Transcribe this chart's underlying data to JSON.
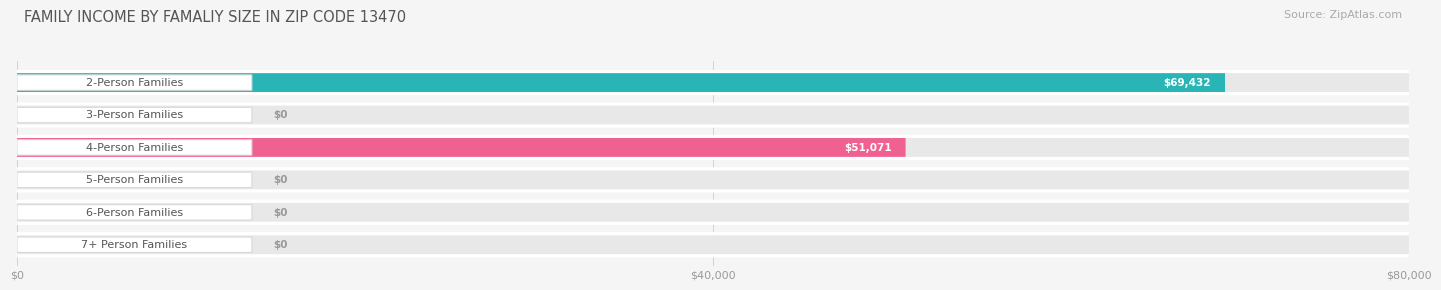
{
  "title": "FAMILY INCOME BY FAMALIY SIZE IN ZIP CODE 13470",
  "source_text": "Source: ZipAtlas.com",
  "categories": [
    "2-Person Families",
    "3-Person Families",
    "4-Person Families",
    "5-Person Families",
    "6-Person Families",
    "7+ Person Families"
  ],
  "values": [
    69432,
    0,
    51071,
    0,
    0,
    0
  ],
  "bar_colors": [
    "#29b5b5",
    "#a99ccc",
    "#f06090",
    "#f5c894",
    "#f09494",
    "#80a8d8"
  ],
  "value_labels": [
    "$69,432",
    "$0",
    "$51,071",
    "$0",
    "$0",
    "$0"
  ],
  "xlim": [
    0,
    80000
  ],
  "xticklabels": [
    "$0",
    "$40,000",
    "$80,000"
  ],
  "background_color": "#f5f5f5",
  "bar_bg_color": "#e8e8e8",
  "row_bg_color": "#f0f0f0",
  "title_fontsize": 10.5,
  "source_fontsize": 8,
  "label_fontsize": 8,
  "value_fontsize": 7.5
}
